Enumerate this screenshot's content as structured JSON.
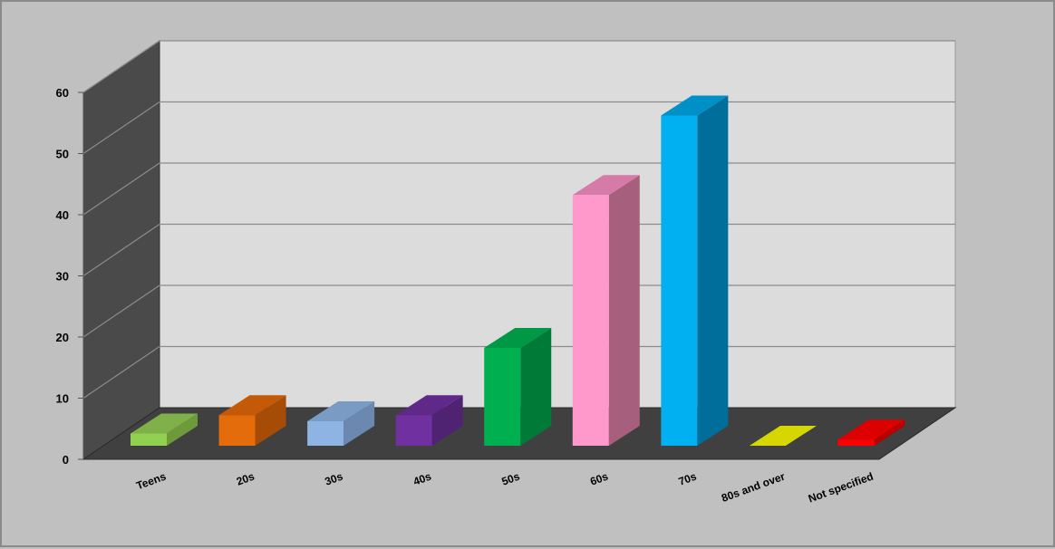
{
  "chart_data": {
    "type": "bar",
    "title": "",
    "xlabel": "",
    "ylabel": "",
    "ylim": [
      0,
      60
    ],
    "yticks": [
      0,
      10,
      20,
      30,
      40,
      50,
      60
    ],
    "grid": true,
    "legend": "none",
    "categories": [
      "Teens",
      "20s",
      "30s",
      "40s",
      "50s",
      "60s",
      "70s",
      "80s and over",
      "Not specified"
    ],
    "values": [
      2,
      5,
      4,
      5,
      16,
      41,
      54,
      0,
      1
    ],
    "colors": {
      "front": [
        "#92d050",
        "#e46c0a",
        "#8db4e2",
        "#7030a0",
        "#00b050",
        "#ff99cc",
        "#00b0f0",
        "#c9c900",
        "#ff0000"
      ],
      "top": [
        "#7fb04a",
        "#c45a08",
        "#7a9cc4",
        "#5e2988",
        "#009844",
        "#d67aa8",
        "#0090c8",
        "#d6d600",
        "#dd0000"
      ],
      "side": [
        "#6e9a3c",
        "#a64c06",
        "#6a88b0",
        "#4f2272",
        "#007a37",
        "#a6607e",
        "#006e9a",
        "#a8a800",
        "#b80000"
      ]
    },
    "background": {
      "back_wall": "#dcdcdc",
      "side_wall": "#4a4a4a",
      "floor": "#404040",
      "outer": "#c0c0c0"
    }
  }
}
